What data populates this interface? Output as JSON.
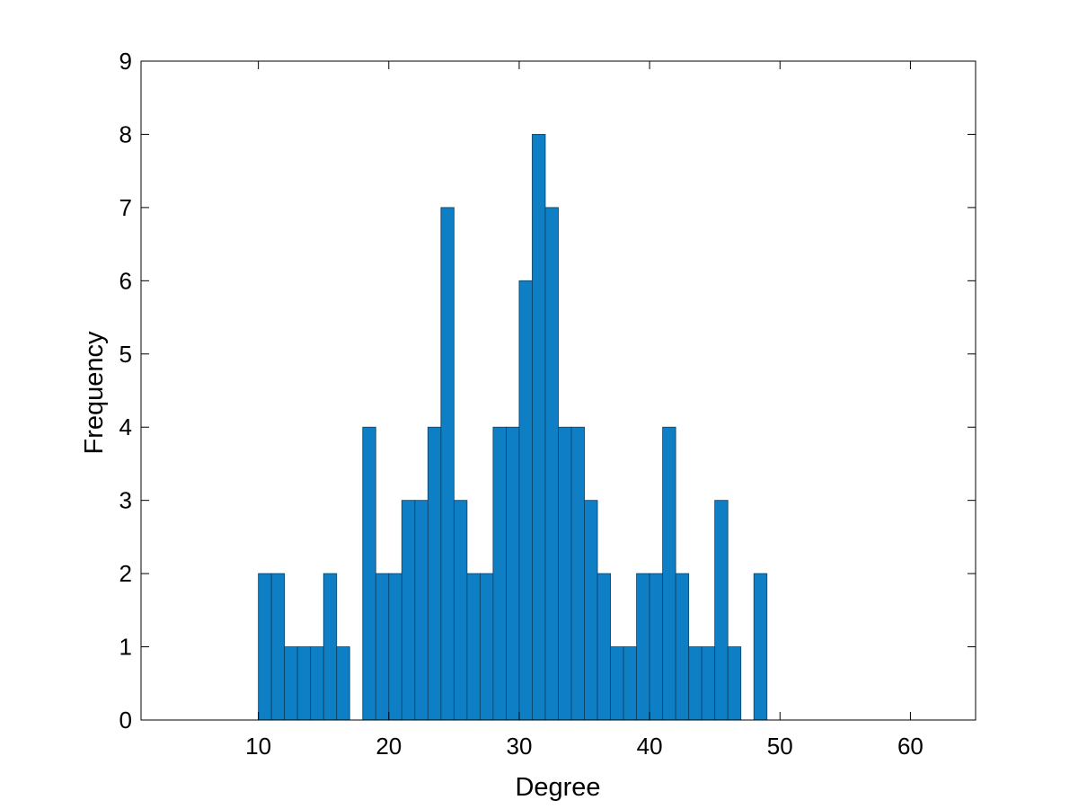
{
  "chart_data": {
    "type": "bar",
    "title": "",
    "xlabel": "Degree",
    "ylabel": "Frequency",
    "xlim": [
      1,
      65
    ],
    "ylim": [
      0,
      9
    ],
    "xticks": [
      10,
      20,
      30,
      40,
      50,
      60
    ],
    "yticks": [
      0,
      1,
      2,
      3,
      4,
      5,
      6,
      7,
      8,
      9
    ],
    "grid": false,
    "bar_color": "#0e7fc5",
    "bar_edge_color": "#0a3f63",
    "bin_width": 1,
    "series": [
      {
        "x": [
          10.5,
          11.5,
          12.5,
          13.5,
          14.5,
          15.5,
          16.5,
          17.5,
          18.5,
          19.5,
          20.5,
          21.5,
          22.5,
          23.5,
          24.5,
          25.5,
          26.5,
          27.5,
          28.5,
          29.5,
          30.5,
          31.5,
          32.5,
          33.5,
          34.5,
          35.5,
          36.5,
          37.5,
          38.5,
          39.5,
          40.5,
          41.5,
          42.5,
          43.5,
          44.5,
          45.5,
          46.5,
          47.5,
          48.5
        ],
        "values": [
          2,
          2,
          1,
          1,
          1,
          2,
          1,
          0,
          4,
          2,
          2,
          3,
          3,
          4,
          7,
          3,
          2,
          2,
          4,
          4,
          6,
          8,
          7,
          4,
          4,
          3,
          2,
          1,
          1,
          2,
          2,
          4,
          2,
          1,
          1,
          3,
          1,
          0,
          2
        ]
      }
    ]
  }
}
